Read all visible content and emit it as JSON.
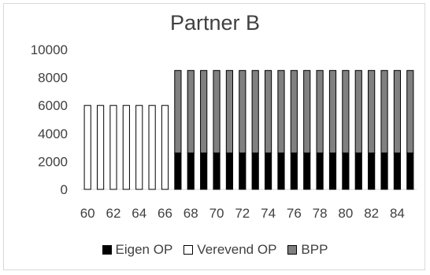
{
  "chart_data": {
    "type": "bar",
    "stacked": true,
    "title": "Partner B",
    "xlabel": "",
    "ylabel": "",
    "ylim": [
      0,
      10000
    ],
    "y_ticks": [
      0,
      2000,
      4000,
      6000,
      8000,
      10000
    ],
    "grid": false,
    "legend_position": "bottom",
    "categories": [
      60,
      61,
      62,
      63,
      64,
      65,
      66,
      67,
      68,
      69,
      70,
      71,
      72,
      73,
      74,
      75,
      76,
      77,
      78,
      79,
      80,
      81,
      82,
      83,
      84,
      85
    ],
    "x_tick_labels": [
      "60",
      "62",
      "64",
      "66",
      "68",
      "70",
      "72",
      "74",
      "76",
      "78",
      "80",
      "82",
      "84"
    ],
    "series": [
      {
        "name": "Eigen OP",
        "color": "#000000",
        "values": [
          0,
          0,
          0,
          0,
          0,
          0,
          0,
          2600,
          2600,
          2600,
          2600,
          2600,
          2600,
          2600,
          2600,
          2600,
          2600,
          2600,
          2600,
          2600,
          2600,
          2600,
          2600,
          2600,
          2600,
          2600
        ]
      },
      {
        "name": "Verevend OP",
        "color": "#ffffff",
        "values": [
          6000,
          6000,
          6000,
          6000,
          6000,
          6000,
          6000,
          0,
          0,
          0,
          0,
          0,
          0,
          0,
          0,
          0,
          0,
          0,
          0,
          0,
          0,
          0,
          0,
          0,
          0,
          0
        ]
      },
      {
        "name": "BPP",
        "color": "#808080",
        "values": [
          0,
          0,
          0,
          0,
          0,
          0,
          0,
          5900,
          5900,
          5900,
          5900,
          5900,
          5900,
          5900,
          5900,
          5900,
          5900,
          5900,
          5900,
          5900,
          5900,
          5900,
          5900,
          5900,
          5900,
          5900
        ]
      }
    ]
  }
}
